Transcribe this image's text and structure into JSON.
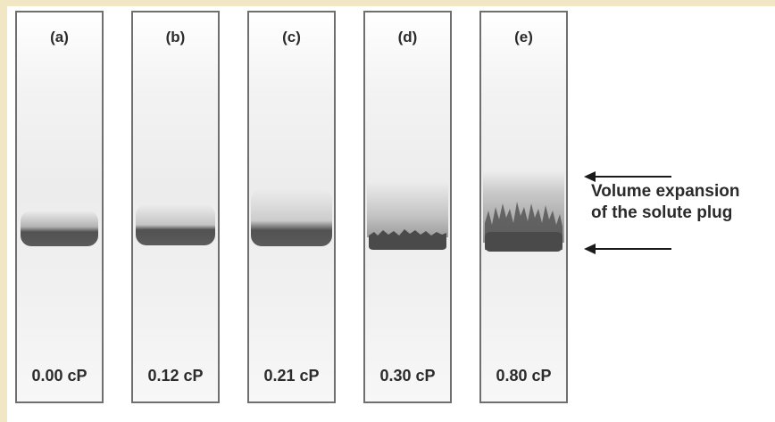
{
  "panels": [
    {
      "letter": "(a)",
      "viscosity": "0.00 cP"
    },
    {
      "letter": "(b)",
      "viscosity": "0.12 cP"
    },
    {
      "letter": "(c)",
      "viscosity": "0.21 cP"
    },
    {
      "letter": "(d)",
      "viscosity": "0.30 cP"
    },
    {
      "letter": "(e)",
      "viscosity": "0.80 cP"
    }
  ],
  "annotation": {
    "line1": "Volume expansion",
    "line2": "of the solute plug"
  },
  "colors": {
    "background": "#f1e7c4",
    "panel_border": "#6f6f6f",
    "plug": "#4a4a4a",
    "arrow": "#1a1a1a"
  }
}
